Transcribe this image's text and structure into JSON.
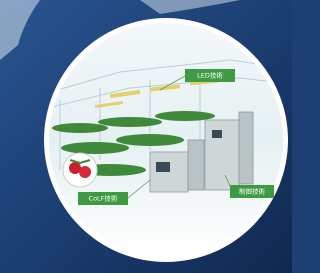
{
  "labels": [
    "LED技術",
    "CoLF技術",
    "制御技術"
  ]
}
